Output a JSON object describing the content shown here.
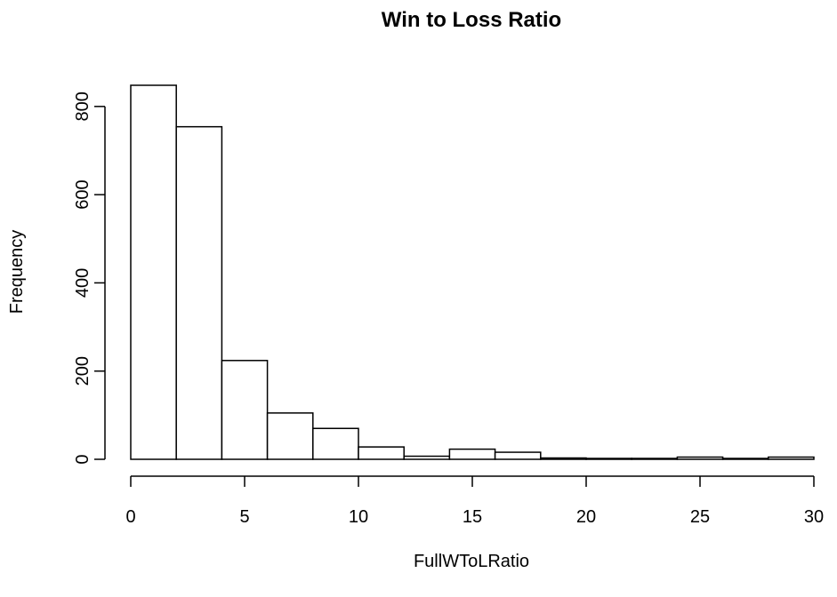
{
  "chart_data": {
    "type": "bar",
    "title": "Win to Loss Ratio",
    "xlabel": "FullWToLRatio",
    "ylabel": "Frequency",
    "bin_edges": [
      0,
      2,
      4,
      6,
      8,
      10,
      12,
      14,
      16,
      18,
      20,
      22,
      24,
      26,
      28,
      30
    ],
    "values": [
      848,
      754,
      224,
      105,
      70,
      28,
      7,
      23,
      16,
      3,
      2,
      2,
      5,
      2,
      5
    ],
    "xlim": [
      0,
      30
    ],
    "ylim": [
      0,
      850
    ],
    "x_ticks": [
      0,
      5,
      10,
      15,
      20,
      25,
      30
    ],
    "y_ticks": [
      0,
      200,
      400,
      600,
      800
    ],
    "grid": false,
    "legend": "none",
    "colors": {
      "bar_fill": "#ffffff",
      "bar_stroke": "#000000"
    }
  }
}
